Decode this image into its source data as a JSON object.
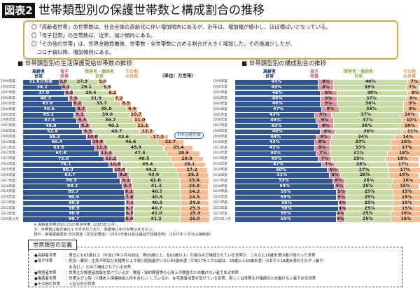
{
  "figure_label": "図表2",
  "title": "世帯類型別の保護世帯数と構成割合の推移",
  "summary": [
    "〇「高齢者世帯」の世帯数は、社会全体の高齢化に伴い増加傾向にあるが、近年は、増加幅が縮小し、ほぼ横ばいとなっている。",
    "〇「母子世帯」の世帯数は、近年、減少傾向にある。",
    "〇「その他の世帯」は、世界金融危機後、世帯数・全世帯数に占める割合が大きく増加した。その後減少したが、",
    "　コロナ禍以降、増加傾向にある。"
  ],
  "colors": {
    "elderly": "#2f5597",
    "mother_child": "#d9929a",
    "disabled_sick": "#c6daa2",
    "other": "#f6bb8e"
  },
  "chart_data": [
    {
      "type": "bar",
      "stacked": true,
      "orientation": "horizontal",
      "title": "■ 世帯類型別の生活保護受給世帯数の推移",
      "unit": "（単位：万世帯）",
      "first_label_suffix": "万世帯",
      "annotation": "世界金融危機",
      "categories": [
        "1999年度",
        "2000年度",
        "2001年度",
        "2002年度",
        "2003年度",
        "2004年度",
        "2005年度",
        "2006年度",
        "2007年度",
        "2008年度",
        "2009年度",
        "2010年度",
        "2011年度",
        "2012年度",
        "2013年度",
        "2014年度",
        "2015年度",
        "2016年度",
        "2017年度",
        "2018年度",
        "2019年度",
        "2020年度",
        "2021年度",
        "2022年度",
        "2023年度",
        "2025年３月"
      ],
      "series": [
        {
          "name": "高齢者世帯",
          "values": [
            31.6,
            34.1,
            37.0,
            40.3,
            43.6,
            46.6,
            45.2,
            47.4,
            49.8,
            52.4,
            56.3,
            60.4,
            63.6,
            67.8,
            72.0,
            76.1,
            80.3,
            83.7,
            86.5,
            88.2,
            89.7,
            90.4,
            90.9,
            90.9,
            90.9,
            90.7
          ]
        },
        {
          "name": "母子世帯",
          "values": [
            5.8,
            6.3,
            6.8,
            7.5,
            8.2,
            8.7,
            9.1,
            9.3,
            9.3,
            9.3,
            10.0,
            10.9,
            11.3,
            11.4,
            11.2,
            10.8,
            10.4,
            9.9,
            9.2,
            8.7,
            8.1,
            7.6,
            7.1,
            6.7,
            6.5,
            6.0
          ]
        },
        {
          "name": "障害者・傷病者世帯",
          "values": [
            27.9,
            29.1,
            30.4,
            31.9,
            33.7,
            35.0,
            39.0,
            39.7,
            40.1,
            40.7,
            43.6,
            46.6,
            48.9,
            47.5,
            46.5,
            45.4,
            44.2,
            43.0,
            42.0,
            41.2,
            40.7,
            40.5,
            40.5,
            40.7,
            41.0,
            41.2
          ]
        },
        {
          "name": "その他の世帯",
          "values": [
            5.0,
            5.5,
            6.2,
            7.2,
            8.5,
            9.4,
            10.7,
            11.0,
            11.1,
            12.2,
            17.2,
            22.7,
            25.4,
            28.5,
            28.8,
            28.1,
            27.2,
            26.3,
            25.6,
            24.8,
            24.3,
            24.5,
            24.9,
            25.3,
            25.9,
            26.0
          ]
        }
      ]
    },
    {
      "type": "bar",
      "stacked": true,
      "orientation": "horizontal",
      "percent": true,
      "title": "■ 世帯類型別の構成割合の推移",
      "categories": [
        "1999年度",
        "2000年度",
        "2001年度",
        "2002年度",
        "2003年度",
        "2004年度",
        "2005年度",
        "2006年度",
        "2007年度",
        "2008年度",
        "2009年度",
        "2010年度",
        "2011年度",
        "2012年度",
        "2013年度",
        "2014年度",
        "2015年度",
        "2016年度",
        "2017年度",
        "2018年度",
        "2019年度",
        "2020年度",
        "2021年度",
        "2022年度",
        "2023年度",
        "2025年３月"
      ],
      "series": [
        {
          "name": "高齢者世帯",
          "values": [
            45,
            45,
            46,
            46,
            46,
            47,
            43,
            44,
            45,
            46,
            44,
            43,
            43,
            44,
            45,
            47,
            50,
            51,
            53,
            54,
            55,
            55,
            56,
            56,
            55,
            55
          ]
        },
        {
          "name": "母子世帯",
          "values": [
            8,
            8,
            9,
            9,
            9,
            9,
            9,
            9,
            8,
            8,
            8,
            8,
            8,
            7,
            7,
            7,
            6,
            6,
            6,
            5,
            5,
            5,
            4,
            4,
            4,
            4
          ]
        },
        {
          "name": "障害者・傷病者世帯",
          "values": [
            40,
            39,
            38,
            37,
            36,
            35,
            37,
            37,
            36,
            36,
            34,
            33,
            33,
            31,
            29,
            28,
            27,
            26,
            26,
            25,
            25,
            25,
            25,
            25,
            25,
            25
          ]
        },
        {
          "name": "その他の世帯",
          "values": [
            7,
            7,
            8,
            8,
            9,
            9,
            10,
            10,
            10,
            11,
            14,
            16,
            17,
            18,
            18,
            17,
            17,
            16,
            16,
            15,
            15,
            15,
            15,
            15,
            16,
            16
          ]
        }
      ]
    }
  ],
  "legend_labels": [
    [
      "高齢者",
      "世帯"
    ],
    [
      "母子",
      "世帯"
    ],
    [
      "障害者・傷病者",
      "世帯"
    ],
    [
      "その他",
      "の世帯"
    ]
  ],
  "notes": [
    "※ 高齢者世帯の93.1%が単身世帯（2025年３月）。",
    "注：世帯数は各年度の１か月平均であり、保護停止中の世帯は含まない。",
    "資料：被保護者調査 月次調査（厚生労働省）（2011年度以前は福祉行政報告例）（2025年３月分は速報値）"
  ],
  "definitions": {
    "label": "世帯類型の定義",
    "items": [
      {
        "key": "●高齢者世帯",
        "text": "：男女とも65歳以上（平成17年３月以前は、男65歳以上、女60歳以上）の者のみで構成されている世帯か、これらに18歳未満の者が加わった世帯"
      },
      {
        "key": "●母子世帯",
        "text": "：死別・離別・生死不明及び未婚等により現に配偶者がいない65歳未満（平成17年３月以前は、18歳以上60歳未満）の女子と18歳未満のその子（養子"
      },
      {
        "key": "",
        "text": "　を含む。）のみで構成されている世帯"
      },
      {
        "key": "●障害者世帯",
        "text": "：世帯主が障害者加算を受けているか、障害・知的障害等の心身上の障害のため働けない者である世帯"
      },
      {
        "key": "●傷病者世帯",
        "text": "：世帯主が入院（介護老人保健施設入所を含む。）しているか、在宅患者加算を受けている世帯、若しくは世帯主が傷病のため働けない者である世帯"
      },
      {
        "key": "●その他の世帯",
        "text": "：上記以外の世帯"
      }
    ]
  }
}
